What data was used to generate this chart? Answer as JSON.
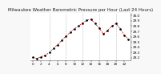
{
  "title": "Milwaukee Weather Barometric Pressure per Hour (Last 24 Hours)",
  "background_color": "#f8f8f8",
  "plot_bg_color": "#ffffff",
  "line_color": "#dd0000",
  "dot_color": "#000000",
  "grid_color": "#bbbbbb",
  "ylim": [
    29.15,
    30.05
  ],
  "yticks": [
    29.2,
    29.3,
    29.4,
    29.5,
    29.6,
    29.7,
    29.8,
    29.9,
    30.0
  ],
  "ytick_labels": [
    "29.2",
    "29.3",
    "29.4",
    "29.5",
    "29.6",
    "29.7",
    "29.8",
    "29.9",
    "30.0"
  ],
  "xlim": [
    -0.5,
    23.5
  ],
  "hours": [
    0,
    1,
    2,
    3,
    4,
    5,
    6,
    7,
    8,
    9,
    10,
    11,
    12,
    13,
    14,
    15,
    16,
    17,
    18,
    19,
    20,
    21,
    22,
    23
  ],
  "pressure": [
    29.21,
    29.19,
    29.22,
    29.25,
    29.3,
    29.38,
    29.45,
    29.53,
    29.61,
    29.68,
    29.75,
    29.8,
    29.86,
    29.91,
    29.93,
    29.85,
    29.76,
    29.65,
    29.72,
    29.8,
    29.85,
    29.75,
    29.63,
    29.55
  ],
  "title_fontsize": 4.0,
  "tick_fontsize": 3.0,
  "grid_vlines": [
    4,
    8,
    12,
    16,
    20
  ],
  "xtick_positions": [
    0,
    2,
    4,
    6,
    8,
    10,
    12,
    14,
    16,
    18,
    20,
    22
  ],
  "xtick_labels": [
    "0",
    "2",
    "4",
    "6",
    "8",
    "10",
    "12",
    "14",
    "16",
    "18",
    "20",
    "22"
  ]
}
